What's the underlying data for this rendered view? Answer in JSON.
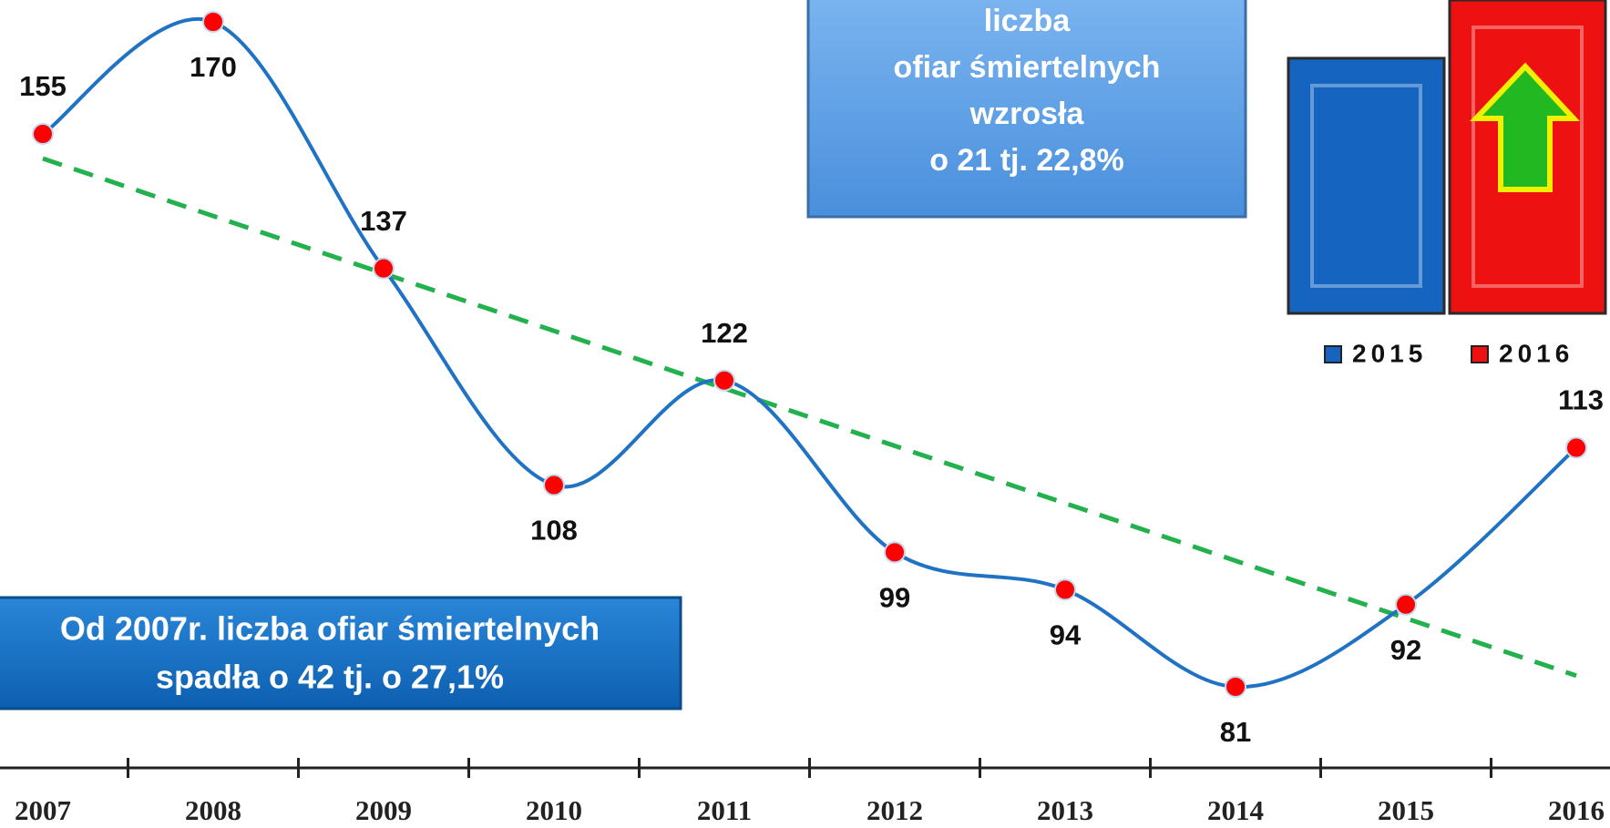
{
  "chart_data": [
    {
      "type": "line",
      "categories": [
        "2007",
        "2008",
        "2009",
        "2010",
        "2011",
        "2012",
        "2013",
        "2014",
        "2015",
        "2016"
      ],
      "series": [
        {
          "color": "#1f72c4",
          "marker_color": "#ff0000",
          "values": [
            155,
            170,
            137,
            108,
            122,
            99,
            94,
            81,
            92,
            113
          ]
        }
      ],
      "trendline": true,
      "trendline_color": "#22b14c",
      "annotations": [
        {
          "lines": [
            "liczba",
            "ofiar śmiertelnych",
            "wzrosła",
            "o 21 tj. 22,8%"
          ]
        },
        {
          "lines": [
            "Od 2007r. liczba ofiar śmiertelnych",
            "spadła o 42 tj. o 27,1%"
          ]
        }
      ]
    },
    {
      "type": "bar",
      "series": [
        {
          "name": "2015",
          "color": "#1565c0",
          "values": [
            92
          ]
        },
        {
          "name": "2016",
          "color": "#ee1111",
          "values": [
            113
          ]
        }
      ]
    }
  ]
}
